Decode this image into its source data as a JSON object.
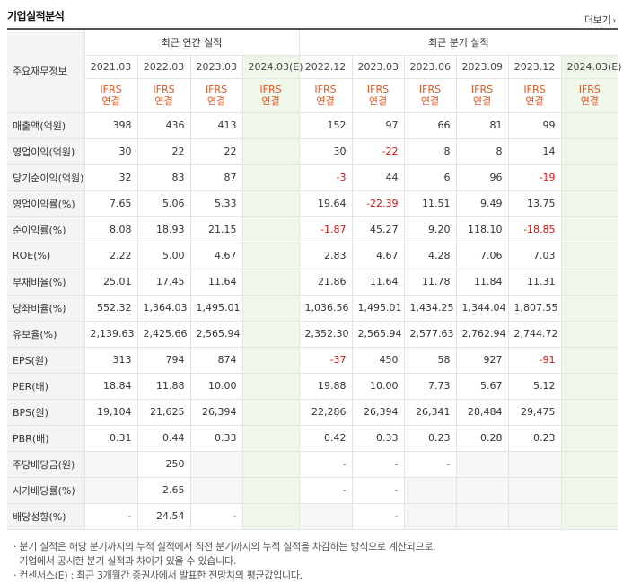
{
  "header": {
    "title": "기업실적분석",
    "more_label": "더보기",
    "more_arrow": "›"
  },
  "table": {
    "row_header_label": "주요재무정보",
    "group_annual": "최근 연간 실적",
    "group_quarterly": "최근 분기 실적",
    "basis_line1": "IFRS",
    "basis_line2": "연결",
    "periods": [
      "2021.03",
      "2022.03",
      "2023.03",
      "2024.03(E)",
      "2022.12",
      "2023.03",
      "2023.06",
      "2023.09",
      "2023.12",
      "2024.03(E)"
    ],
    "rows": [
      {
        "label": "매출액(억원)",
        "values": [
          "398",
          "436",
          "413",
          "",
          "152",
          "97",
          "66",
          "81",
          "99",
          ""
        ]
      },
      {
        "label": "영업이익(억원)",
        "values": [
          "30",
          "22",
          "22",
          "",
          "30",
          "-22",
          "8",
          "8",
          "14",
          ""
        ]
      },
      {
        "label": "당기순이익(억원)",
        "values": [
          "32",
          "83",
          "87",
          "",
          "-3",
          "44",
          "6",
          "96",
          "-19",
          ""
        ]
      },
      {
        "label": "영업이익률(%)",
        "values": [
          "7.65",
          "5.06",
          "5.33",
          "",
          "19.64",
          "-22.39",
          "11.51",
          "9.49",
          "13.75",
          ""
        ]
      },
      {
        "label": "순이익률(%)",
        "values": [
          "8.08",
          "18.93",
          "21.15",
          "",
          "-1.87",
          "45.27",
          "9.20",
          "118.10",
          "-18.85",
          ""
        ]
      },
      {
        "label": "ROE(%)",
        "values": [
          "2.22",
          "5.00",
          "4.67",
          "",
          "2.83",
          "4.67",
          "4.28",
          "7.06",
          "7.03",
          ""
        ]
      },
      {
        "label": "부채비율(%)",
        "values": [
          "25.01",
          "17.45",
          "11.64",
          "",
          "21.86",
          "11.64",
          "11.78",
          "11.84",
          "11.31",
          ""
        ]
      },
      {
        "label": "당좌비율(%)",
        "values": [
          "552.32",
          "1,364.03",
          "1,495.01",
          "",
          "1,036.56",
          "1,495.01",
          "1,434.25",
          "1,344.04",
          "1,807.55",
          ""
        ]
      },
      {
        "label": "유보율(%)",
        "values": [
          "2,139.63",
          "2,425.66",
          "2,565.94",
          "",
          "2,352.30",
          "2,565.94",
          "2,577.63",
          "2,762.94",
          "2,744.72",
          ""
        ]
      },
      {
        "label": "EPS(원)",
        "values": [
          "313",
          "794",
          "874",
          "",
          "-37",
          "450",
          "58",
          "927",
          "-91",
          ""
        ]
      },
      {
        "label": "PER(배)",
        "values": [
          "18.84",
          "11.88",
          "10.00",
          "",
          "19.88",
          "10.00",
          "7.73",
          "5.67",
          "5.12",
          ""
        ]
      },
      {
        "label": "BPS(원)",
        "values": [
          "19,104",
          "21,625",
          "26,394",
          "",
          "22,286",
          "26,394",
          "26,341",
          "28,484",
          "29,475",
          ""
        ]
      },
      {
        "label": "PBR(배)",
        "values": [
          "0.31",
          "0.44",
          "0.33",
          "",
          "0.42",
          "0.33",
          "0.23",
          "0.28",
          "0.23",
          ""
        ]
      },
      {
        "label": "주당배당금(원)",
        "values": [
          "",
          "250",
          "",
          "",
          "-",
          "-",
          "-",
          "",
          "",
          ""
        ]
      },
      {
        "label": "시가배당률(%)",
        "values": [
          "",
          "2.65",
          "",
          "",
          "-",
          "-",
          "",
          "",
          "",
          ""
        ]
      },
      {
        "label": "배당성향(%)",
        "values": [
          "-",
          "24.54",
          "-",
          "",
          "",
          "-",
          "",
          "",
          "",
          ""
        ]
      }
    ]
  },
  "notes": {
    "line1": "분기 실적은 해당 분기까지의 누적 실적에서 직전 분기까지의 누적 실적을 차감하는 방식으로 계산되므로,",
    "line2": "기업에서 공시한 분기 실적과 차이가 있을 수 있습니다.",
    "line3": "컨센서스(E) : 최근 3개월간 증권사에서 발표한 전망치의 평균값입니다.",
    "bullet": "·"
  },
  "colors": {
    "negative": "#e30e0e",
    "ifrs": "#e8541d",
    "estimate_bg": "#eef7ea",
    "row_header_bg": "#f4f4f4"
  }
}
